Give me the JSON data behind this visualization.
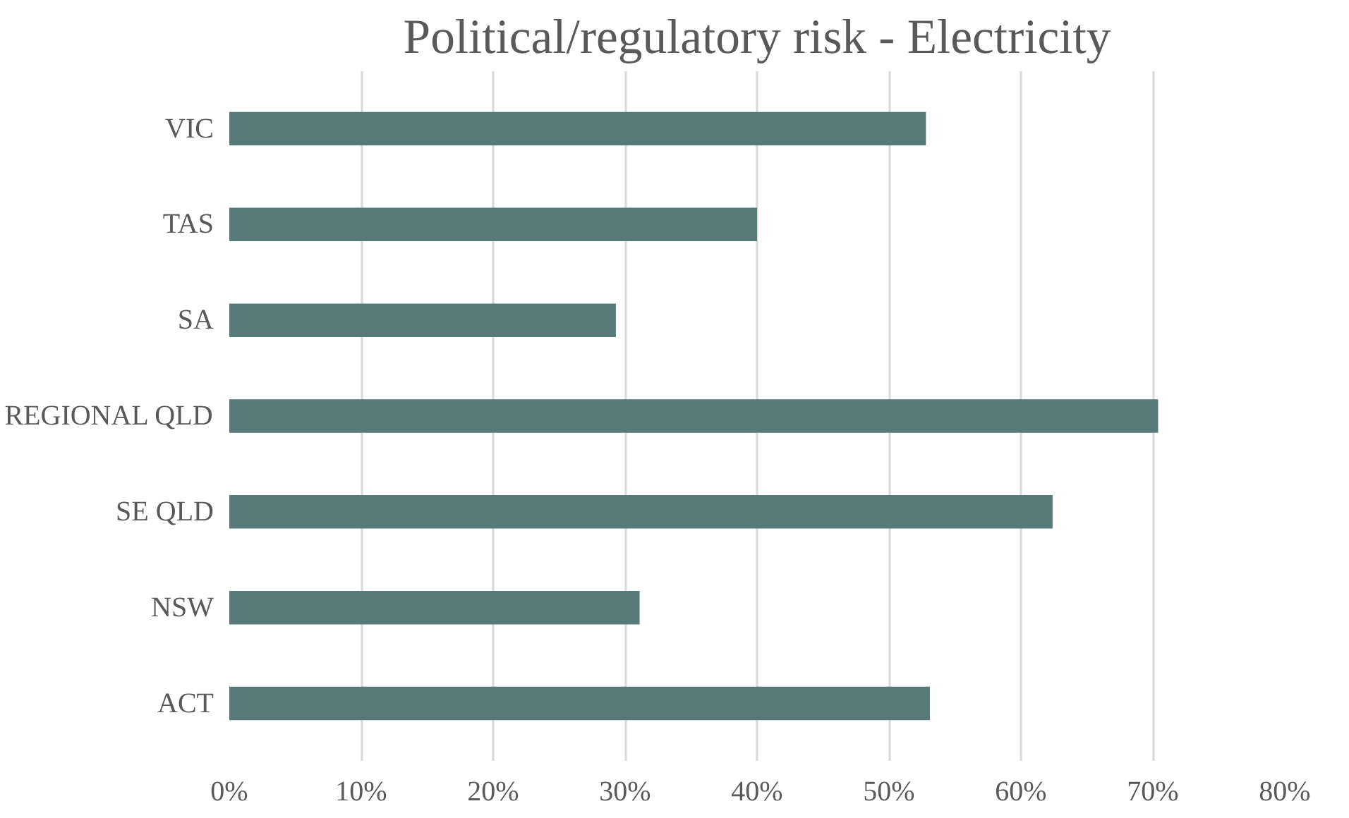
{
  "chart_data": {
    "type": "bar",
    "orientation": "horizontal",
    "title": "Political/regulatory risk - Electricity",
    "categories": [
      "VIC",
      "TAS",
      "SA",
      "REGIONAL QLD",
      "SE QLD",
      "NSW",
      "ACT"
    ],
    "values": [
      52.8,
      40.0,
      29.3,
      70.4,
      62.4,
      31.1,
      53.1
    ],
    "color": "#577a78",
    "xlim": [
      0,
      80
    ],
    "xticks": [
      {
        "value": 0,
        "label": "0%"
      },
      {
        "value": 10,
        "label": "10%"
      },
      {
        "value": 20,
        "label": "20%"
      },
      {
        "value": 30,
        "label": "30%"
      },
      {
        "value": 40,
        "label": "40%"
      },
      {
        "value": 50,
        "label": "50%"
      },
      {
        "value": 60,
        "label": "60%"
      },
      {
        "value": 70,
        "label": "70%"
      },
      {
        "value": 80,
        "label": "80%"
      }
    ],
    "grid": "x"
  }
}
